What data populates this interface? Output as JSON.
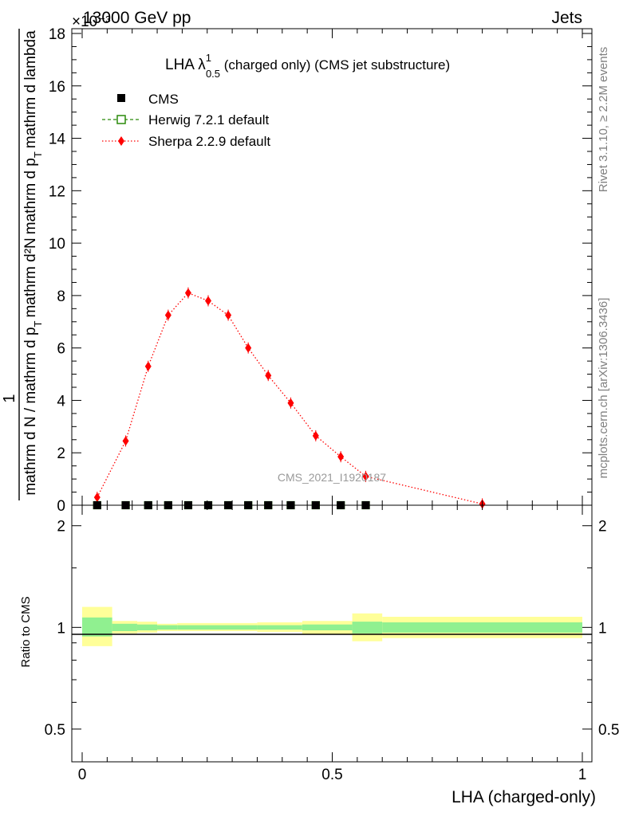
{
  "header": {
    "left": "13000 GeV pp",
    "right": "Jets",
    "exponent": "×10⁻³"
  },
  "side_labels": {
    "rivet": "Rivet 3.1.10, ≥ 2.2M events",
    "mcplots": "mcplots.cern.ch [arXiv:1306.3436]"
  },
  "watermark": "CMS_2021_I1920187",
  "colors": {
    "cms": "#000000",
    "herwig": "#2a8a0a",
    "sherpa": "#ff0000",
    "band_inner": "#90f090",
    "band_outer": "#ffff99"
  },
  "chart_data": [
    {
      "type": "scatter",
      "title": "LHA λ",
      "title_sup": "1",
      "title_sub": "0.5",
      "title_suffix": " (charged only) (CMS jet substructure)",
      "ylabel_numerator": "1",
      "ylabel_lines": [
        "mathrm d N / mathrm d p",
        "T",
        "mathrm d²N",
        "mathrm d p",
        "T",
        "mathrm d lambda"
      ],
      "xlim": [
        0,
        1
      ],
      "ylim": [
        0,
        18
      ],
      "y_ticks": [
        0,
        2,
        4,
        6,
        8,
        10,
        12,
        14,
        16,
        18
      ],
      "grid": false,
      "legend": "top-left",
      "series": [
        {
          "name": "CMS",
          "marker": "filled-square",
          "x": [
            0.03,
            0.087,
            0.132,
            0.172,
            0.212,
            0.252,
            0.292,
            0.332,
            0.372,
            0.417,
            0.467,
            0.517,
            0.567
          ],
          "y": [
            0.0,
            0.0,
            0.0,
            0.0,
            0.0,
            0.0,
            0.0,
            0.0,
            0.0,
            0.0,
            0.0,
            0.0,
            0.0
          ]
        },
        {
          "name": "Herwig 7.2.1 default",
          "marker": "open-square",
          "line": "dashed",
          "x": [
            0.03,
            0.087,
            0.132,
            0.172,
            0.212,
            0.252,
            0.292,
            0.332,
            0.372,
            0.417,
            0.467,
            0.517,
            0.567
          ],
          "y": [
            0.0,
            0.0,
            0.0,
            0.0,
            0.0,
            0.0,
            0.0,
            0.0,
            0.0,
            0.0,
            0.0,
            0.0,
            0.0
          ]
        },
        {
          "name": "Sherpa 2.2.9 default",
          "marker": "diamond",
          "line": "dotted",
          "x": [
            0.03,
            0.087,
            0.132,
            0.172,
            0.212,
            0.252,
            0.292,
            0.332,
            0.372,
            0.417,
            0.467,
            0.517,
            0.567,
            0.8
          ],
          "y": [
            0.3,
            2.45,
            5.3,
            7.25,
            8.1,
            7.8,
            7.25,
            6.0,
            4.95,
            3.9,
            2.65,
            1.85,
            1.1,
            0.05
          ]
        }
      ]
    },
    {
      "type": "area",
      "ylabel": "Ratio to CMS",
      "xlabel": "LHA (charged-only)",
      "xlim": [
        0,
        1
      ],
      "ylim": [
        0.4,
        2.3
      ],
      "scale": "log",
      "x_ticks": [
        0,
        0.5,
        1
      ],
      "y_ticks": [
        0.5,
        1,
        2
      ],
      "reference": 1,
      "bins": [
        {
          "x0": 0.0,
          "x1": 0.06,
          "inner": [
            0.94,
            1.07
          ],
          "outer": [
            0.88,
            1.15
          ]
        },
        {
          "x0": 0.06,
          "x1": 0.11,
          "inner": [
            0.975,
            1.025
          ],
          "outer": [
            0.96,
            1.045
          ]
        },
        {
          "x0": 0.11,
          "x1": 0.15,
          "inner": [
            0.98,
            1.02
          ],
          "outer": [
            0.965,
            1.04
          ]
        },
        {
          "x0": 0.15,
          "x1": 0.19,
          "inner": [
            0.985,
            1.015
          ],
          "outer": [
            0.975,
            1.025
          ]
        },
        {
          "x0": 0.19,
          "x1": 0.35,
          "inner": [
            0.985,
            1.015
          ],
          "outer": [
            0.975,
            1.03
          ]
        },
        {
          "x0": 0.35,
          "x1": 0.44,
          "inner": [
            0.985,
            1.015
          ],
          "outer": [
            0.97,
            1.035
          ]
        },
        {
          "x0": 0.44,
          "x1": 0.54,
          "inner": [
            0.98,
            1.02
          ],
          "outer": [
            0.955,
            1.045
          ]
        },
        {
          "x0": 0.54,
          "x1": 0.6,
          "inner": [
            0.96,
            1.04
          ],
          "outer": [
            0.91,
            1.1
          ]
        },
        {
          "x0": 0.6,
          "x1": 1.0,
          "inner": [
            0.965,
            1.035
          ],
          "outer": [
            0.93,
            1.075
          ]
        }
      ]
    }
  ]
}
